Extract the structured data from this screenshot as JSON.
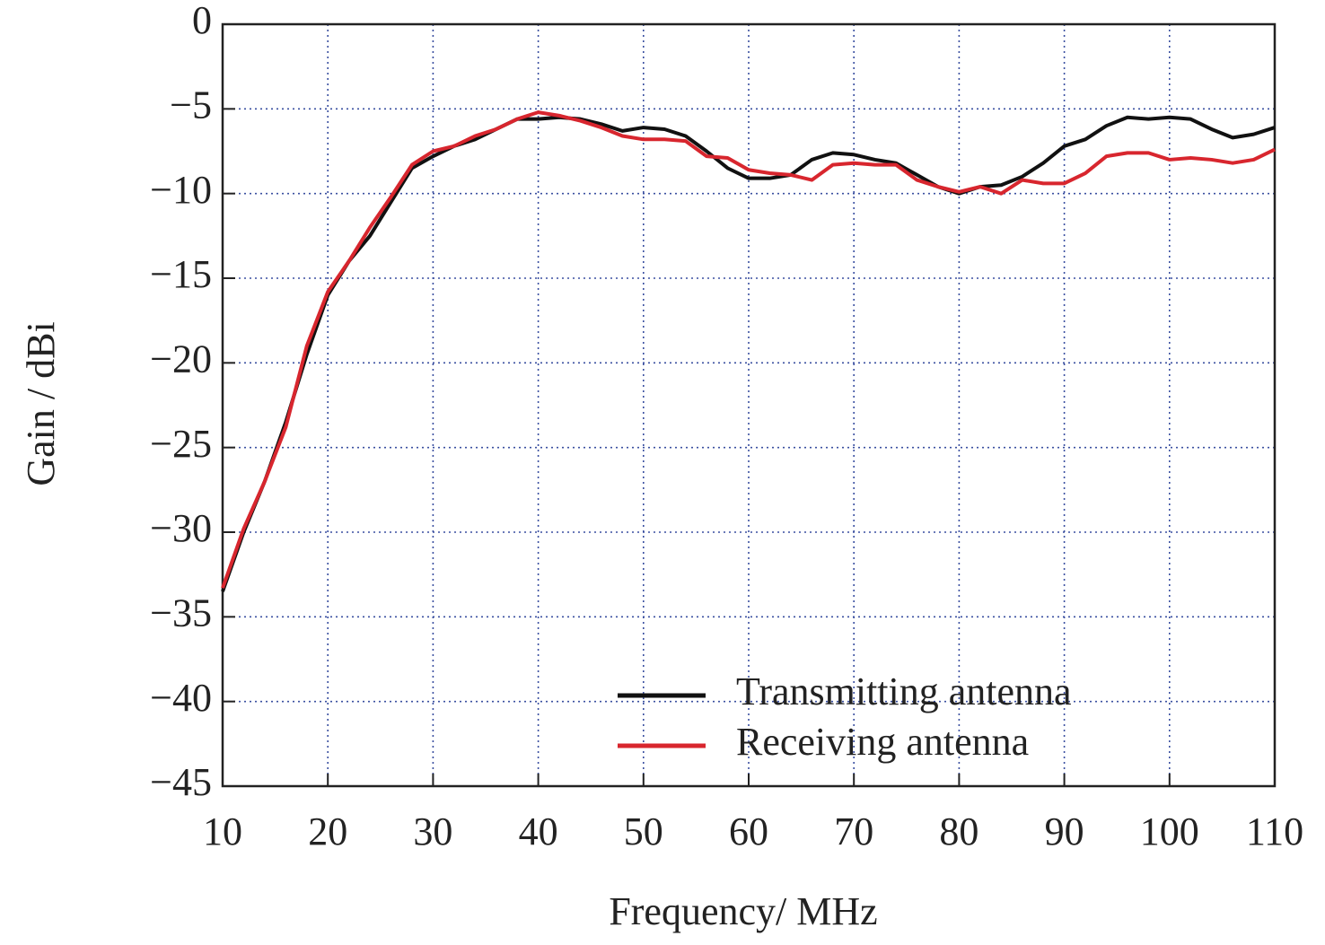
{
  "chart_data": {
    "type": "line",
    "x_label": "Frequency/ MHz",
    "y_label": "Gain / dBi",
    "x": [
      10,
      12,
      14,
      16,
      18,
      20,
      22,
      24,
      26,
      28,
      30,
      32,
      34,
      36,
      38,
      40,
      42,
      44,
      46,
      48,
      50,
      52,
      54,
      56,
      58,
      60,
      62,
      64,
      66,
      68,
      70,
      72,
      74,
      76,
      78,
      80,
      82,
      84,
      86,
      88,
      90,
      92,
      94,
      96,
      98,
      100,
      102,
      104,
      106,
      108,
      110
    ],
    "series": [
      {
        "name": "Transmitting antenna",
        "color": "#111111",
        "values": [
          -33.5,
          -30,
          -27,
          -23.5,
          -19.5,
          -16,
          -14,
          -12.5,
          -10.5,
          -8.5,
          -7.8,
          -7.2,
          -6.8,
          -6.2,
          -5.6,
          -5.6,
          -5.5,
          -5.6,
          -5.9,
          -6.3,
          -6.1,
          -6.2,
          -6.6,
          -7.5,
          -8.5,
          -9.1,
          -9.1,
          -8.9,
          -8.0,
          -7.6,
          -7.7,
          -8.0,
          -8.2,
          -8.9,
          -9.6,
          -10.0,
          -9.6,
          -9.5,
          -9.0,
          -8.2,
          -7.2,
          -6.8,
          -6.0,
          -5.5,
          -5.6,
          -5.5,
          -5.6,
          -6.2,
          -6.7,
          -6.5,
          -6.1
        ]
      },
      {
        "name": "Receiving antenna",
        "color": "#d8262e",
        "values": [
          -33.3,
          -29.8,
          -27,
          -23.8,
          -19,
          -15.8,
          -14,
          -12,
          -10.2,
          -8.3,
          -7.5,
          -7.2,
          -6.6,
          -6.2,
          -5.6,
          -5.2,
          -5.4,
          -5.7,
          -6.1,
          -6.6,
          -6.8,
          -6.8,
          -6.9,
          -7.8,
          -7.9,
          -8.6,
          -8.8,
          -8.9,
          -9.2,
          -8.3,
          -8.2,
          -8.3,
          -8.3,
          -9.2,
          -9.6,
          -9.9,
          -9.6,
          -10.0,
          -9.2,
          -9.4,
          -9.4,
          -8.8,
          -7.8,
          -7.6,
          -7.6,
          -8.0,
          -7.9,
          -8.0,
          -8.2,
          -8.0,
          -7.4
        ]
      }
    ],
    "xlim": [
      10,
      110
    ],
    "xticks": [
      10,
      20,
      30,
      40,
      50,
      60,
      70,
      80,
      90,
      100,
      110
    ],
    "ylim": [
      -45,
      0
    ],
    "yticks": [
      {
        "value": -45,
        "label": "−45"
      },
      {
        "value": -40,
        "label": "−40"
      },
      {
        "value": -35,
        "label": "−35"
      },
      {
        "value": -30,
        "label": "−30"
      },
      {
        "value": -25,
        "label": "−25"
      },
      {
        "value": -20,
        "label": "−20"
      },
      {
        "value": -15,
        "label": "−15"
      },
      {
        "value": -10,
        "label": "−10"
      },
      {
        "value": -5,
        "label": "−5"
      },
      0
    ],
    "grid": true,
    "legend": "lower-right"
  }
}
